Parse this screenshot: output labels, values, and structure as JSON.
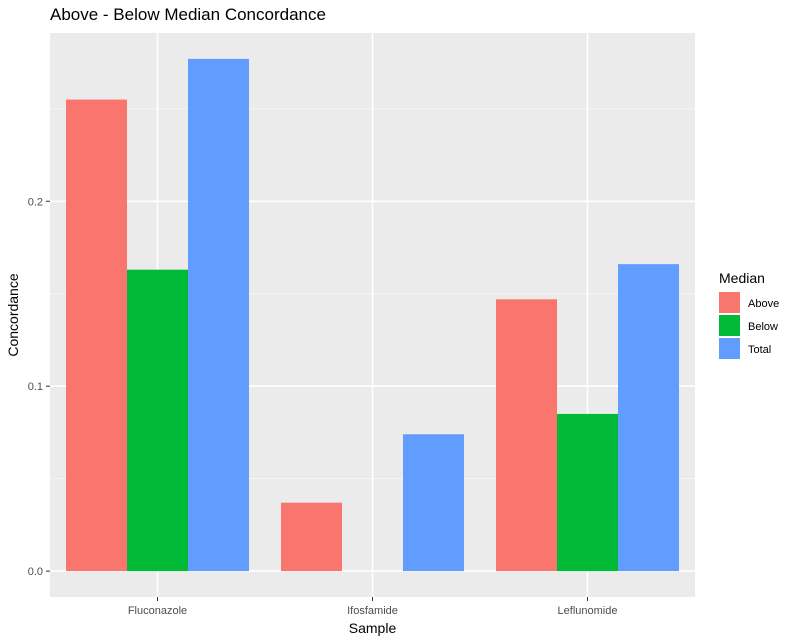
{
  "chart_data": {
    "type": "bar",
    "title": "Above - Below Median Concordance",
    "xlabel": "Sample",
    "ylabel": "Concordance",
    "categories": [
      "Fluconazole",
      "Ifosfamide",
      "Leflunomide"
    ],
    "series": [
      {
        "name": "Above",
        "color": "#F8766D",
        "values": [
          0.255,
          0.037,
          0.147
        ]
      },
      {
        "name": "Below",
        "color": "#00BA38",
        "values": [
          0.163,
          0.0,
          0.085
        ]
      },
      {
        "name": "Total",
        "color": "#619CFF",
        "values": [
          0.277,
          0.074,
          0.166
        ]
      }
    ],
    "yticks": [
      0.0,
      0.1,
      0.2
    ],
    "ytick_labels": [
      "0.0",
      "0.1",
      "0.2"
    ],
    "ylim": [
      -0.014,
      0.291
    ],
    "legend": {
      "title": "Median",
      "position": "right"
    },
    "grid": true,
    "colors": {
      "panel": "#EBEBEB",
      "grid_major": "#FFFFFF",
      "grid_minor": "#F5F5F5"
    }
  }
}
